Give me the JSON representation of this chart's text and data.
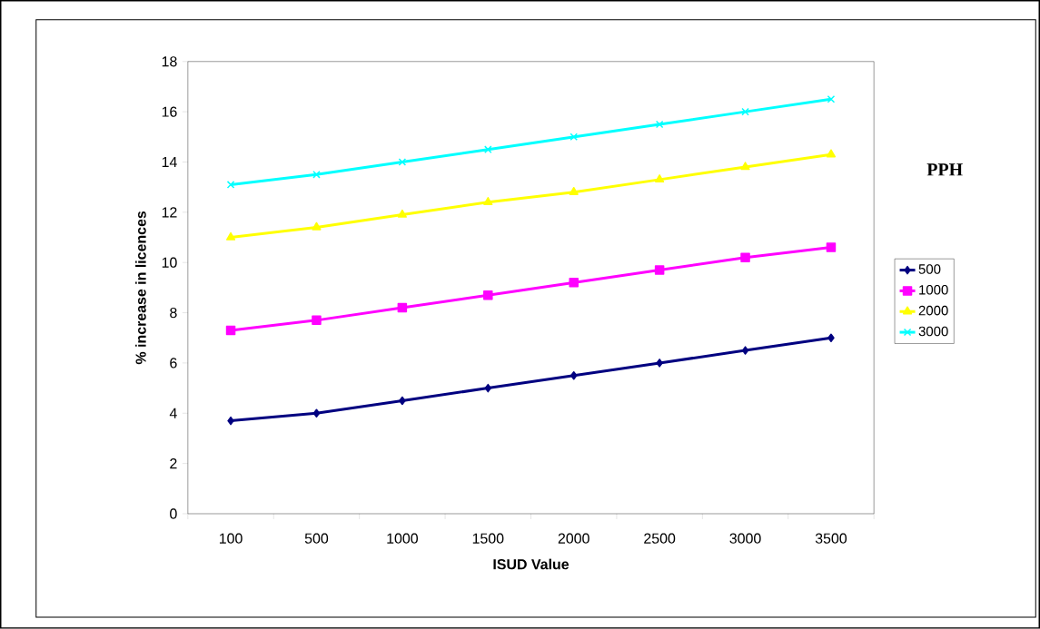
{
  "chart_data": {
    "type": "line",
    "xlabel": "ISUD Value",
    "ylabel": "% increase in licences",
    "legend_title": "PPH",
    "categories": [
      "100",
      "500",
      "1000",
      "1500",
      "2000",
      "2500",
      "3000",
      "3500"
    ],
    "series": [
      {
        "name": "500",
        "color": "#000080",
        "marker": "diamond",
        "values": [
          3.7,
          4.0,
          4.5,
          5.0,
          5.5,
          6.0,
          6.5,
          7.0
        ]
      },
      {
        "name": "1000",
        "color": "#ff00ff",
        "marker": "square",
        "values": [
          7.3,
          7.7,
          8.2,
          8.7,
          9.2,
          9.7,
          10.2,
          10.6
        ]
      },
      {
        "name": "2000",
        "color": "#ffff00",
        "marker": "triangle",
        "values": [
          11.0,
          11.4,
          11.9,
          12.4,
          12.8,
          13.3,
          13.8,
          14.3
        ]
      },
      {
        "name": "3000",
        "color": "#00ffff",
        "marker": "cross",
        "values": [
          13.1,
          13.5,
          14.0,
          14.5,
          15.0,
          15.5,
          16.0,
          16.5
        ]
      }
    ],
    "ylim": [
      0,
      18
    ],
    "yticks": [
      0,
      2,
      4,
      6,
      8,
      10,
      12,
      14,
      16,
      18
    ],
    "grid": false,
    "legend": "right",
    "line_style": "solid"
  }
}
